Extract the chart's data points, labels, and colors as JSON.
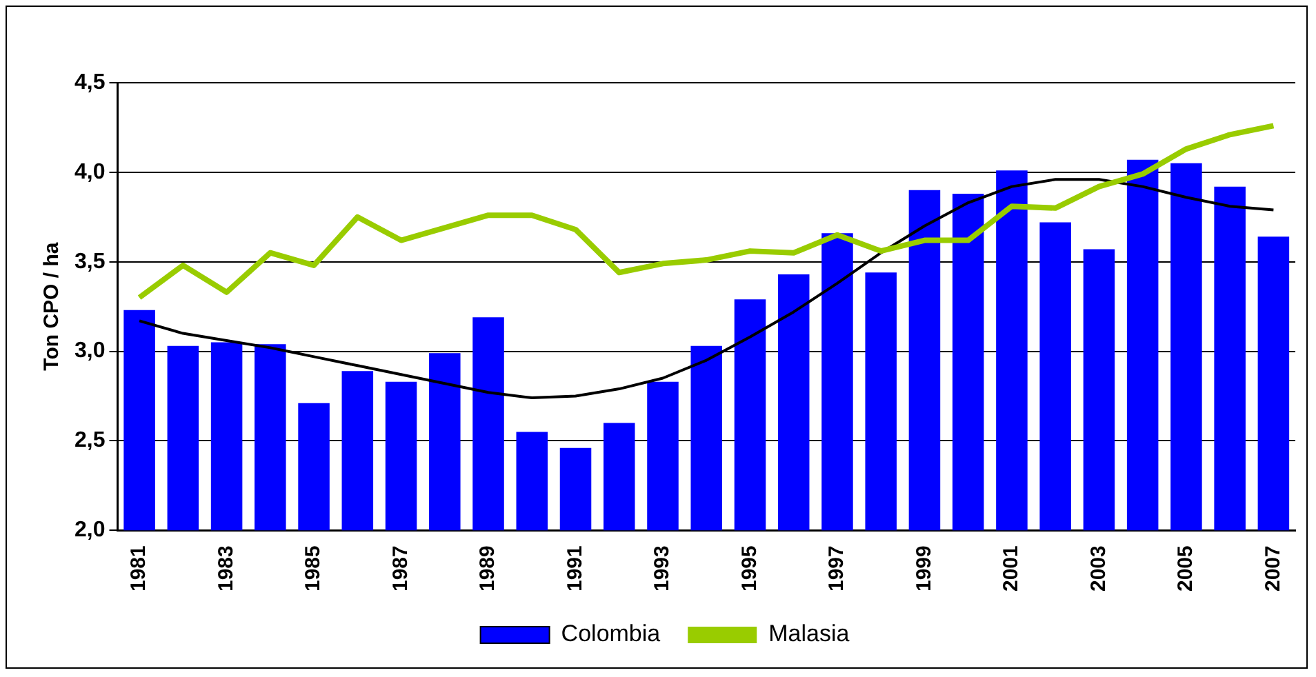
{
  "chart_data": {
    "type": "bar",
    "ylabel": "Ton CPO / ha",
    "categories": [
      "1981",
      null,
      "1983",
      null,
      "1985",
      null,
      "1987",
      null,
      "1989",
      null,
      "1991",
      null,
      "1993",
      null,
      "1995",
      null,
      "1997",
      null,
      "1999",
      null,
      "2001",
      null,
      "2003",
      null,
      "2005",
      null,
      "2007"
    ],
    "series": [
      {
        "name": "Colombia",
        "color": "#0000ff",
        "values": [
          3.23,
          3.03,
          3.05,
          3.04,
          2.71,
          2.89,
          2.83,
          2.99,
          3.19,
          2.55,
          2.46,
          2.6,
          2.83,
          3.03,
          3.29,
          3.43,
          3.66,
          3.44,
          3.9,
          3.88,
          4.01,
          3.72,
          3.57,
          4.07,
          4.05,
          3.92,
          3.64
        ]
      },
      {
        "name": "Malasia",
        "type": "line",
        "color": "#99cc00",
        "values": [
          3.3,
          3.48,
          3.33,
          3.55,
          3.48,
          3.75,
          3.62,
          3.69,
          3.76,
          3.76,
          3.68,
          3.44,
          3.49,
          3.51,
          3.56,
          3.55,
          3.65,
          3.56,
          3.62,
          3.62,
          3.81,
          3.8,
          3.92,
          3.99,
          4.13,
          4.21,
          4.26
        ]
      },
      {
        "type": "line",
        "color": "#000000",
        "values": [
          3.17,
          3.1,
          3.06,
          3.02,
          2.97,
          2.92,
          2.87,
          2.82,
          2.77,
          2.74,
          2.75,
          2.79,
          2.85,
          2.95,
          3.08,
          3.22,
          3.38,
          3.55,
          3.7,
          3.83,
          3.92,
          3.96,
          3.96,
          3.92,
          3.86,
          3.81,
          3.79
        ]
      }
    ],
    "ylim": [
      2,
      4.5
    ],
    "yticks": [
      {
        "value": 2,
        "label": "2,0"
      },
      {
        "value": 2.5,
        "label": "2,5"
      },
      {
        "value": 3,
        "label": "3,0"
      },
      {
        "value": 3.5,
        "label": "3,5"
      },
      {
        "value": 4,
        "label": "4,0"
      },
      {
        "value": 4.5,
        "label": "4,5"
      }
    ],
    "grid": "y",
    "legend": "bottom",
    "marker": "none",
    "line_style": "solid"
  }
}
